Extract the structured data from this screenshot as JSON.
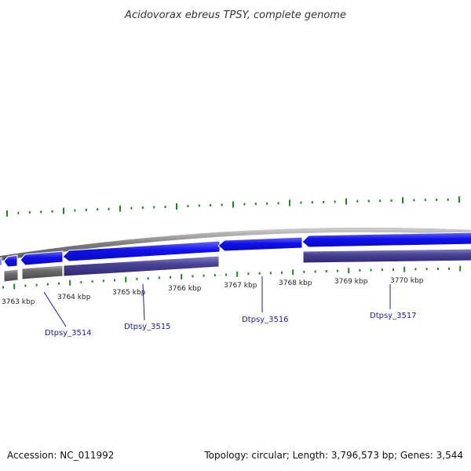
{
  "title": "Acidovorax ebreus TPSY, complete genome",
  "footer": {
    "accession": "Accession: NC_011992",
    "summary": "Topology: circular; Length: 3,796,573 bp; Genes: 3,544"
  },
  "colors": {
    "forward_gene": "#1010ee",
    "reverse_gene": "#4a4296",
    "other_feature": "#6a6a6a",
    "backbone": "#8a8a8a",
    "gc_skew": "#1a8a1a",
    "label": "#1a1aa0"
  },
  "scale_labels": [
    "3763 kbp",
    "3764 kbp",
    "3765 kbp",
    "3766 kbp",
    "3767 kbp",
    "3768 kbp",
    "3769 kbp",
    "3770 kbp"
  ],
  "gene_labels": [
    "Dtpsy_3514",
    "Dtpsy_3515",
    "Dtpsy_3516",
    "Dtpsy_3517"
  ]
}
